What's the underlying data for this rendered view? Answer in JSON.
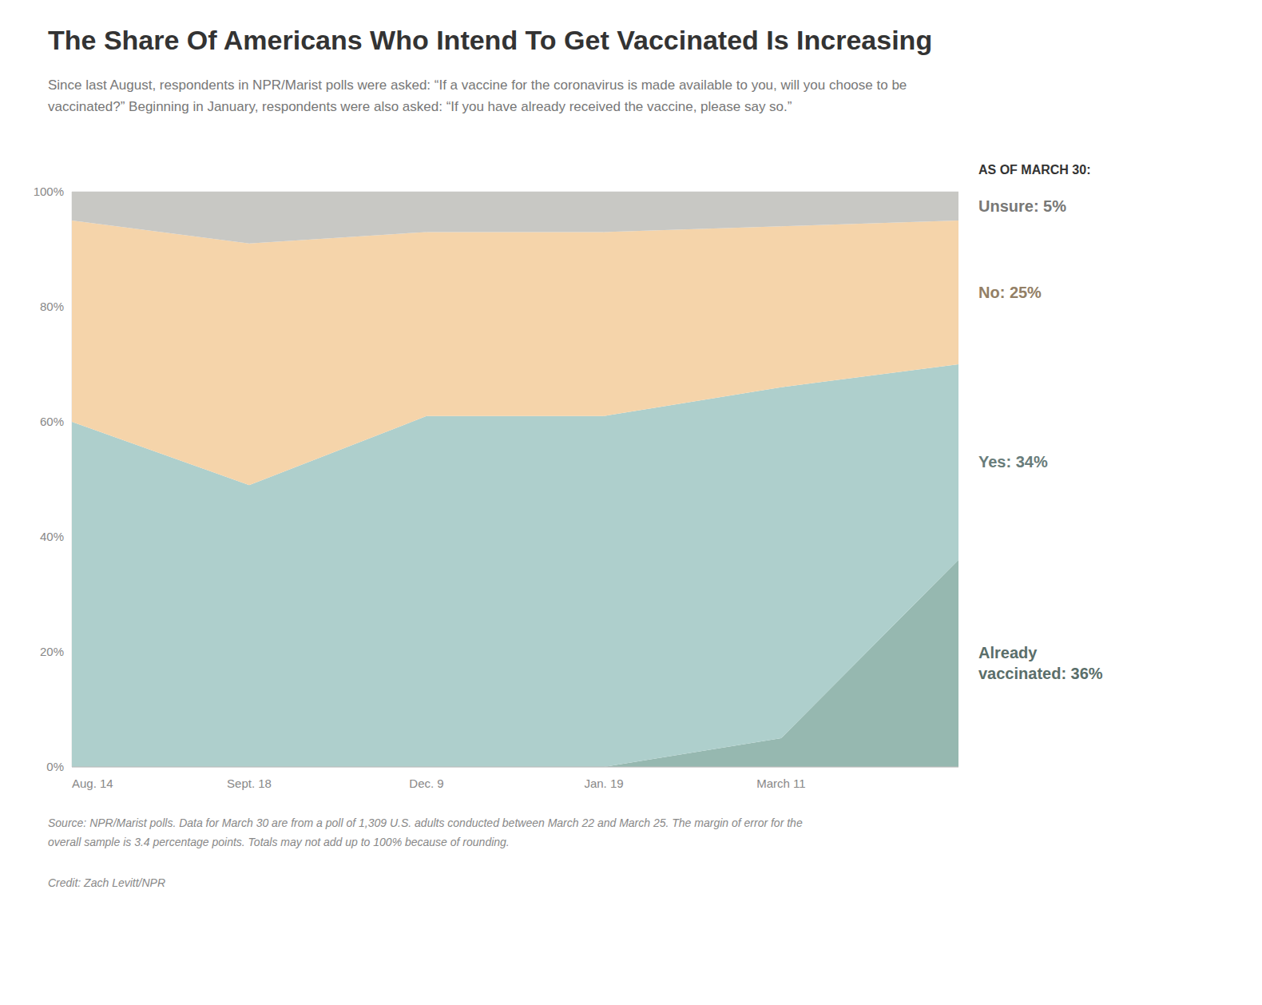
{
  "chart_data": {
    "type": "area",
    "stacked": true,
    "title": "The Share Of Americans Who Intend To Get Vaccinated Is Increasing",
    "subtitle": "Since last August, respondents in NPR/Marist polls were asked: “If a vaccine for the coronavirus is made available to you, will you choose to be\nvaccinated?” Beginning in January, respondents were also asked: “If you have already received the vaccine, please say so.”",
    "legend_title": "AS OF MARCH 30:",
    "source": "Source: NPR/Marist polls. Data for March 30 are from a poll of 1,309 U.S. adults conducted between March 22 and March 25. The margin of error for the\noverall sample is 3.4 percentage points. Totals may not add up to 100% because of rounding.",
    "credit": "Credit: Zach Levitt/NPR",
    "categories": [
      "Aug. 14",
      "Sept. 18",
      "Dec. 9",
      "Jan. 19",
      "March 11",
      null
    ],
    "series": [
      {
        "name": "Already\nvaccinated: 36%",
        "color": "#96b8b0",
        "values": [
          0,
          0,
          0,
          0,
          5,
          36
        ]
      },
      {
        "name": "Yes: 34%",
        "color": "#aecfcc",
        "values": [
          60,
          49,
          61,
          61,
          61,
          34
        ]
      },
      {
        "name": "No: 25%",
        "color": "#f5d4aa",
        "values": [
          35,
          42,
          32,
          32,
          28,
          25
        ]
      },
      {
        "name": "Unsure: 5%",
        "color": "#c8c8c4",
        "values": [
          5,
          9,
          7,
          7,
          6,
          5
        ]
      }
    ],
    "ylim": [
      0,
      100
    ],
    "yticks": [
      {
        "value": 0,
        "label": "0%"
      },
      {
        "value": 20,
        "label": "20%"
      },
      {
        "value": 40,
        "label": "40%"
      },
      {
        "value": 60,
        "label": "60%"
      },
      {
        "value": 80,
        "label": "80%"
      },
      {
        "value": 100,
        "label": "100%"
      }
    ],
    "grid": true,
    "legend": "right"
  }
}
